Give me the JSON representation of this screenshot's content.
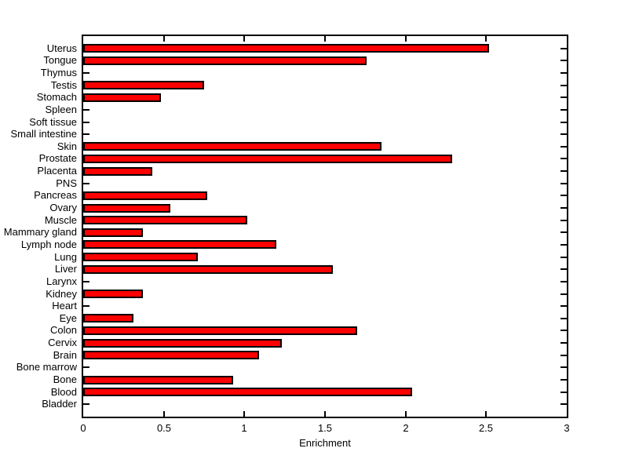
{
  "figure": {
    "background": "#FFFFFF"
  },
  "chart_data": {
    "type": "bar",
    "orientation": "horizontal",
    "title": "",
    "xlabel": "Enrichment",
    "ylabel": "",
    "xlim": [
      0,
      3
    ],
    "xticks": [
      0,
      0.5,
      1,
      1.5,
      2,
      2.5,
      3
    ],
    "xtick_labels": [
      "0",
      "0.5",
      "1",
      "1.5",
      "2",
      "2.5",
      "3"
    ],
    "grid": false,
    "bar_color": "#FF0000",
    "bar_edge_color": "#000000",
    "axis_color": "#000000",
    "text_color": "#000000",
    "categories": [
      "Uterus",
      "Tongue",
      "Thymus",
      "Testis",
      "Stomach",
      "Spleen",
      "Soft tissue",
      "Small intestine",
      "Skin",
      "Prostate",
      "Placenta",
      "PNS",
      "Pancreas",
      "Ovary",
      "Muscle",
      "Mammary gland",
      "Lymph node",
      "Lung",
      "Liver",
      "Larynx",
      "Kidney",
      "Heart",
      "Eye",
      "Colon",
      "Cervix",
      "Brain",
      "Bone marrow",
      "Bone",
      "Blood",
      "Bladder"
    ],
    "values": [
      2.52,
      1.76,
      0,
      0.75,
      0.48,
      0,
      0,
      0,
      1.85,
      2.29,
      0.43,
      0,
      0.77,
      0.54,
      1.02,
      0.37,
      1.2,
      0.71,
      1.55,
      0,
      0.37,
      0,
      0.31,
      1.7,
      1.23,
      1.09,
      0,
      0.93,
      2.04,
      0
    ]
  }
}
